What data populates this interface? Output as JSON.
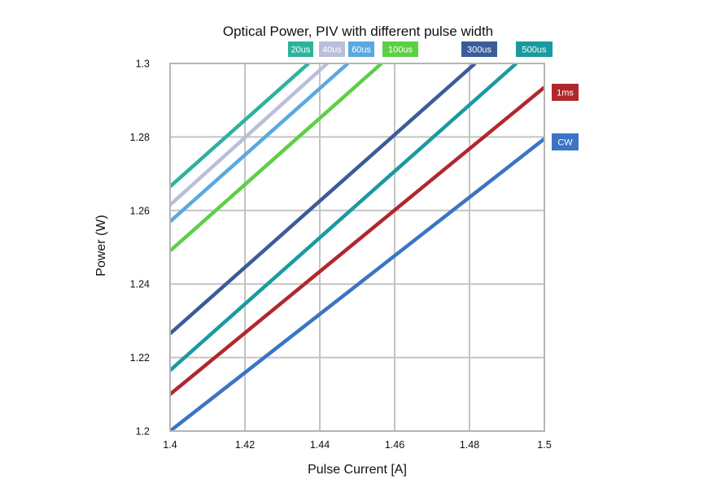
{
  "chart_data": {
    "type": "line",
    "title": "Optical Power, PIV with different pulse width",
    "xlabel": "Pulse Current [A]",
    "ylabel": "Power (W)",
    "xlim": [
      1.4,
      1.5
    ],
    "ylim": [
      1.2,
      1.3
    ],
    "x_ticks": [
      "1.4",
      "1.42",
      "1.44",
      "1.46",
      "1.48",
      "1.5"
    ],
    "y_ticks": [
      "1.2",
      "1.22",
      "1.24",
      "1.26",
      "1.28",
      "1.3"
    ],
    "grid": true,
    "series": [
      {
        "name": "20us",
        "color": "#2db39b",
        "points": [
          [
            1.4,
            1.2665
          ],
          [
            1.437,
            1.3
          ]
        ]
      },
      {
        "name": "40us",
        "color": "#b9bfd8",
        "points": [
          [
            1.4,
            1.2615
          ],
          [
            1.442,
            1.3
          ]
        ]
      },
      {
        "name": "60us",
        "color": "#5aa9e0",
        "points": [
          [
            1.4,
            1.257
          ],
          [
            1.4475,
            1.3
          ]
        ]
      },
      {
        "name": "100us",
        "color": "#5dcf45",
        "points": [
          [
            1.4,
            1.249
          ],
          [
            1.4565,
            1.3
          ]
        ]
      },
      {
        "name": "300us",
        "color": "#3a5c99",
        "points": [
          [
            1.4,
            1.2265
          ],
          [
            1.4815,
            1.3
          ]
        ]
      },
      {
        "name": "500us",
        "color": "#1a9aa0",
        "points": [
          [
            1.4,
            1.2165
          ],
          [
            1.4925,
            1.3
          ]
        ]
      },
      {
        "name": "1ms",
        "color": "#b0282d",
        "points": [
          [
            1.4,
            1.21
          ],
          [
            1.5,
            1.2935
          ]
        ]
      },
      {
        "name": "CW",
        "color": "#3b74c4",
        "points": [
          [
            1.4,
            1.2
          ],
          [
            1.5,
            1.2795
          ]
        ]
      }
    ]
  }
}
